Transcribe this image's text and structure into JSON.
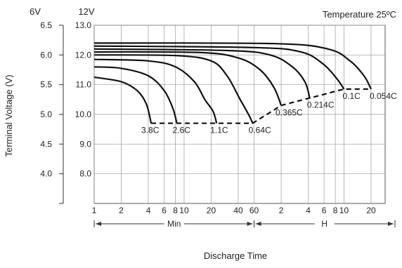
{
  "chart_data": {
    "type": "line",
    "title": "Temperature 25ºC",
    "xlabel": "Discharge Time",
    "ylabel": "Terminal Voltage (V)",
    "y_unit_left": "6V",
    "y_unit_right": "12V",
    "y_ticks_6v": [
      "6.5",
      "6.0",
      "5.5",
      "5.0",
      "4.5",
      "4.0"
    ],
    "y_ticks_12v": [
      "13.0",
      "12.0",
      "11.0",
      "10.0",
      "9.0",
      "8.0"
    ],
    "ylim_12v": [
      7.0,
      13.0
    ],
    "x_scale": "log",
    "x_ticks": [
      {
        "label": "1",
        "minutes": 1
      },
      {
        "label": "2",
        "minutes": 2
      },
      {
        "label": "4",
        "minutes": 4
      },
      {
        "label": "6",
        "minutes": 6
      },
      {
        "label": "8",
        "minutes": 8
      },
      {
        "label": "10",
        "minutes": 10
      },
      {
        "label": "20",
        "minutes": 20
      },
      {
        "label": "40",
        "minutes": 40
      },
      {
        "label": "60",
        "minutes": 60
      },
      {
        "label": "2",
        "minutes": 120
      },
      {
        "label": "4",
        "minutes": 240
      },
      {
        "label": "6",
        "minutes": 360
      },
      {
        "label": "8",
        "minutes": 480
      },
      {
        "label": "10",
        "minutes": 600
      },
      {
        "label": "20",
        "minutes": 1200
      }
    ],
    "x_ranges": [
      {
        "label": "Min",
        "from_minutes": 1,
        "to_minutes": 60
      },
      {
        "label": "H",
        "from_minutes": 60,
        "to_minutes": 1200
      }
    ],
    "series": [
      {
        "label": "3.8C",
        "points": [
          [
            1,
            11.25
          ],
          [
            2,
            11.1
          ],
          [
            3,
            10.8
          ],
          [
            3.8,
            10.35
          ],
          [
            4.3,
            9.7
          ]
        ]
      },
      {
        "label": "2.6C",
        "points": [
          [
            1,
            11.6
          ],
          [
            2,
            11.55
          ],
          [
            4,
            11.3
          ],
          [
            6,
            10.8
          ],
          [
            7.5,
            10.2
          ],
          [
            8.3,
            9.7
          ]
        ]
      },
      {
        "label": "1.1C",
        "points": [
          [
            1,
            11.85
          ],
          [
            4,
            11.8
          ],
          [
            8,
            11.6
          ],
          [
            13,
            11.1
          ],
          [
            17,
            10.5
          ],
          [
            21,
            10.1
          ],
          [
            23,
            9.7
          ]
        ]
      },
      {
        "label": "0.64C",
        "points": [
          [
            1,
            12.0
          ],
          [
            8,
            11.98
          ],
          [
            20,
            11.8
          ],
          [
            30,
            11.3
          ],
          [
            42,
            10.5
          ],
          [
            52,
            10.0
          ],
          [
            58,
            9.7
          ]
        ]
      },
      {
        "label": "0.365C",
        "points": [
          [
            1,
            12.1
          ],
          [
            15,
            12.08
          ],
          [
            40,
            11.9
          ],
          [
            70,
            11.5
          ],
          [
            100,
            10.9
          ],
          [
            120,
            10.3
          ]
        ]
      },
      {
        "label": "0.214C",
        "points": [
          [
            1,
            12.2
          ],
          [
            30,
            12.15
          ],
          [
            90,
            12.0
          ],
          [
            160,
            11.6
          ],
          [
            220,
            11.1
          ],
          [
            250,
            10.55
          ]
        ]
      },
      {
        "label": "0.1C",
        "points": [
          [
            1,
            12.3
          ],
          [
            60,
            12.25
          ],
          [
            200,
            12.1
          ],
          [
            350,
            11.7
          ],
          [
            500,
            11.2
          ],
          [
            600,
            10.85
          ]
        ]
      },
      {
        "label": "0.054C",
        "points": [
          [
            1,
            12.4
          ],
          [
            100,
            12.38
          ],
          [
            400,
            12.2
          ],
          [
            700,
            11.8
          ],
          [
            1000,
            11.3
          ],
          [
            1200,
            10.85
          ]
        ]
      }
    ],
    "end_voltage_line": {
      "style": "dashed",
      "points": [
        [
          4.3,
          9.7
        ],
        [
          58,
          9.7
        ],
        [
          120,
          10.3
        ],
        [
          250,
          10.55
        ],
        [
          600,
          10.85
        ],
        [
          1200,
          10.85
        ]
      ]
    },
    "grid": true,
    "legend": "inline-labels"
  }
}
